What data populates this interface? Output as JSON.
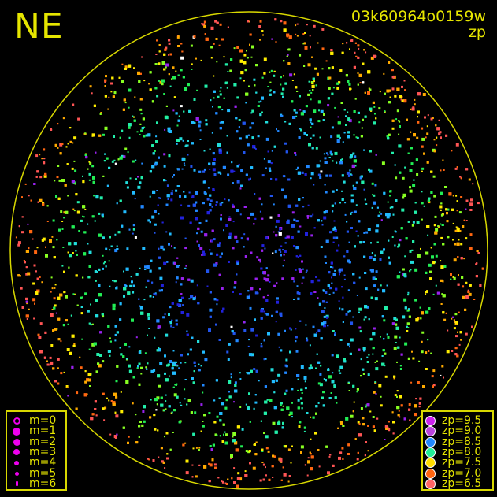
{
  "chart_data": {
    "type": "scatter",
    "title": "NE",
    "frame_id": "03k60964o0159w",
    "color_quantity": "zp",
    "grid": false,
    "size_legend": [
      {
        "label": "m=0",
        "hollow": true
      },
      {
        "label": "m=1"
      },
      {
        "label": "m=2"
      },
      {
        "label": "m=3"
      },
      {
        "label": "m=4"
      },
      {
        "label": "m=5"
      },
      {
        "label": "m=6"
      }
    ],
    "color_legend": [
      {
        "label": "zp=9.5",
        "color": "#cc22ee"
      },
      {
        "label": "zp=9.0",
        "color": "#bb44dd"
      },
      {
        "label": "zp=8.5",
        "color": "#2288ff"
      },
      {
        "label": "zp=8.0",
        "color": "#22ee99"
      },
      {
        "label": "zp=7.5",
        "color": "#ffdd00"
      },
      {
        "label": "zp=7.0",
        "color": "#ff6611"
      },
      {
        "label": "zp=6.5",
        "color": "#ff6666"
      }
    ],
    "colors": {
      "horizon": "#d8d800",
      "text": "#e6e600",
      "legend_symbol": "#ee00ee"
    }
  }
}
